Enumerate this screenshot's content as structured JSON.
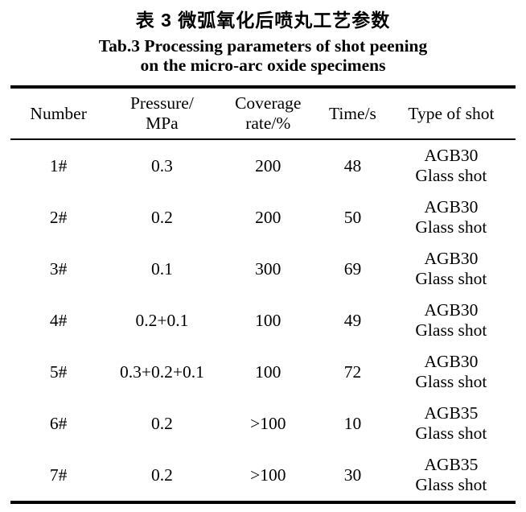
{
  "title": {
    "zh": "表 3 微弧氧化后喷丸工艺参数",
    "en": "Tab.3 Processing parameters of shot peening\non the micro-arc oxide specimens"
  },
  "table": {
    "headers": {
      "number": "Number",
      "pressure": "Pressure/\nMPa",
      "coverage": "Coverage\nrate/%",
      "time": "Time/s",
      "shot": "Type of shot"
    },
    "rows": [
      {
        "number": "1#",
        "pressure": "0.3",
        "coverage": "200",
        "time": "48",
        "shot": "AGB30\nGlass shot"
      },
      {
        "number": "2#",
        "pressure": "0.2",
        "coverage": "200",
        "time": "50",
        "shot": "AGB30\nGlass shot"
      },
      {
        "number": "3#",
        "pressure": "0.1",
        "coverage": "300",
        "time": "69",
        "shot": "AGB30\nGlass shot"
      },
      {
        "number": "4#",
        "pressure": "0.2+0.1",
        "coverage": "100",
        "time": "49",
        "shot": "AGB30\nGlass shot"
      },
      {
        "number": "5#",
        "pressure": "0.3+0.2+0.1",
        "coverage": "100",
        "time": "72",
        "shot": "AGB30\nGlass shot"
      },
      {
        "number": "6#",
        "pressure": "0.2",
        "coverage": ">100",
        "time": "10",
        "shot": "AGB35\nGlass shot"
      },
      {
        "number": "7#",
        "pressure": "0.2",
        "coverage": ">100",
        "time": "30",
        "shot": "AGB35\nGlass shot"
      }
    ]
  },
  "colors": {
    "text": "#000000",
    "background": "#ffffff",
    "rule": "#000000"
  }
}
